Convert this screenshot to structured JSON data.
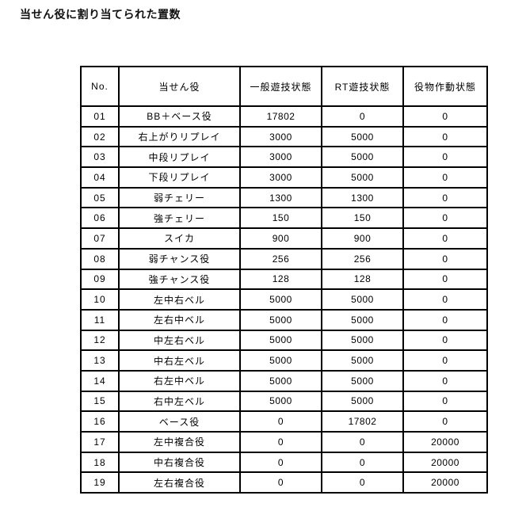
{
  "page_title": "当せん役に割り当てられた置数",
  "colors": {
    "background": "#ffffff",
    "text": "#000000",
    "border": "#000000"
  },
  "table": {
    "columns": [
      {
        "key": "no",
        "label": "No."
      },
      {
        "key": "role",
        "label": "当せん役"
      },
      {
        "key": "general",
        "label": "一般遊技状態"
      },
      {
        "key": "rt",
        "label": "RT遊技状態"
      },
      {
        "key": "device",
        "label": "役物作動状態"
      }
    ],
    "rows": [
      [
        "01",
        "BB＋ベース役",
        "17802",
        "0",
        "0"
      ],
      [
        "02",
        "右上がりリプレイ",
        "3000",
        "5000",
        "0"
      ],
      [
        "03",
        "中段リプレイ",
        "3000",
        "5000",
        "0"
      ],
      [
        "04",
        "下段リプレイ",
        "3000",
        "5000",
        "0"
      ],
      [
        "05",
        "弱チェリー",
        "1300",
        "1300",
        "0"
      ],
      [
        "06",
        "強チェリー",
        "150",
        "150",
        "0"
      ],
      [
        "07",
        "スイカ",
        "900",
        "900",
        "0"
      ],
      [
        "08",
        "弱チャンス役",
        "256",
        "256",
        "0"
      ],
      [
        "09",
        "強チャンス役",
        "128",
        "128",
        "0"
      ],
      [
        "10",
        "左中右ベル",
        "5000",
        "5000",
        "0"
      ],
      [
        "11",
        "左右中ベル",
        "5000",
        "5000",
        "0"
      ],
      [
        "12",
        "中左右ベル",
        "5000",
        "5000",
        "0"
      ],
      [
        "13",
        "中右左ベル",
        "5000",
        "5000",
        "0"
      ],
      [
        "14",
        "右左中ベル",
        "5000",
        "5000",
        "0"
      ],
      [
        "15",
        "右中左ベル",
        "5000",
        "5000",
        "0"
      ],
      [
        "16",
        "ベース役",
        "0",
        "17802",
        "0"
      ],
      [
        "17",
        "左中複合役",
        "0",
        "0",
        "20000"
      ],
      [
        "18",
        "中右複合役",
        "0",
        "0",
        "20000"
      ],
      [
        "19",
        "左右複合役",
        "0",
        "0",
        "20000"
      ]
    ]
  }
}
